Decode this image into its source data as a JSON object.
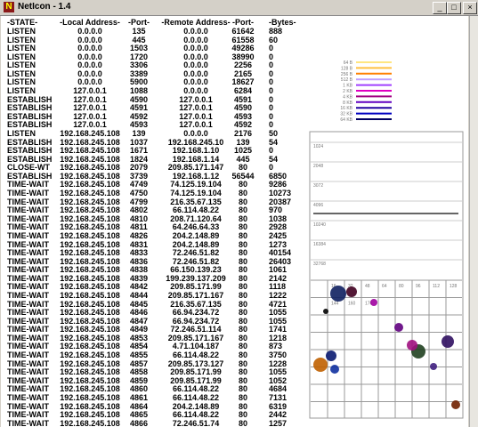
{
  "window": {
    "title": "NetIcon - 1.4"
  },
  "table": {
    "columns": [
      "-STATE-",
      "-Local Address-",
      "-Port-",
      "-Remote Address-",
      "-Port-",
      "-Bytes-"
    ],
    "rows": [
      [
        "LISTEN",
        "0.0.0.0",
        "135",
        "0.0.0.0",
        "61642",
        "888"
      ],
      [
        "LISTEN",
        "0.0.0.0",
        "445",
        "0.0.0.0",
        "61558",
        "60"
      ],
      [
        "LISTEN",
        "0.0.0.0",
        "1503",
        "0.0.0.0",
        "49286",
        "0"
      ],
      [
        "LISTEN",
        "0.0.0.0",
        "1720",
        "0.0.0.0",
        "38990",
        "0"
      ],
      [
        "LISTEN",
        "0.0.0.0",
        "3306",
        "0.0.0.0",
        "2256",
        "0"
      ],
      [
        "LISTEN",
        "0.0.0.0",
        "3389",
        "0.0.0.0",
        "2165",
        "0"
      ],
      [
        "LISTEN",
        "0.0.0.0",
        "5900",
        "0.0.0.0",
        "18627",
        "0"
      ],
      [
        "LISTEN",
        "127.0.0.1",
        "1088",
        "0.0.0.0",
        "6284",
        "0"
      ],
      [
        "ESTABLISH",
        "127.0.0.1",
        "4590",
        "127.0.0.1",
        "4591",
        "0"
      ],
      [
        "ESTABLISH",
        "127.0.0.1",
        "4591",
        "127.0.0.1",
        "4590",
        "0"
      ],
      [
        "ESTABLISH",
        "127.0.0.1",
        "4592",
        "127.0.0.1",
        "4593",
        "0"
      ],
      [
        "ESTABLISH",
        "127.0.0.1",
        "4593",
        "127.0.0.1",
        "4592",
        "0"
      ],
      [
        "LISTEN",
        "192.168.245.108",
        "139",
        "0.0.0.0",
        "2176",
        "50"
      ],
      [
        "ESTABLISH",
        "192.168.245.108",
        "1037",
        "192.168.245.10",
        "139",
        "54"
      ],
      [
        "ESTABLISH",
        "192.168.245.108",
        "1671",
        "192.168.1.10",
        "1025",
        "0"
      ],
      [
        "ESTABLISH",
        "192.168.245.108",
        "1824",
        "192.168.1.14",
        "445",
        "54"
      ],
      [
        "CLOSE-WT",
        "192.168.245.108",
        "2079",
        "209.85.171.147",
        "80",
        "0"
      ],
      [
        "ESTABLISH",
        "192.168.245.108",
        "3739",
        "192.168.1.12",
        "56544",
        "6850"
      ],
      [
        "TIME-WAIT",
        "192.168.245.108",
        "4749",
        "74.125.19.104",
        "80",
        "9286"
      ],
      [
        "TIME-WAIT",
        "192.168.245.108",
        "4750",
        "74.125.19.104",
        "80",
        "10273"
      ],
      [
        "TIME-WAIT",
        "192.168.245.108",
        "4799",
        "216.35.67.135",
        "80",
        "20387"
      ],
      [
        "TIME-WAIT",
        "192.168.245.108",
        "4802",
        "66.114.48.22",
        "80",
        "970"
      ],
      [
        "TIME-WAIT",
        "192.168.245.108",
        "4810",
        "208.71.120.64",
        "80",
        "1038"
      ],
      [
        "TIME-WAIT",
        "192.168.245.108",
        "4811",
        "64.246.64.33",
        "80",
        "2928"
      ],
      [
        "TIME-WAIT",
        "192.168.245.108",
        "4826",
        "204.2.148.89",
        "80",
        "2425"
      ],
      [
        "TIME-WAIT",
        "192.168.245.108",
        "4831",
        "204.2.148.89",
        "80",
        "1273"
      ],
      [
        "TIME-WAIT",
        "192.168.245.108",
        "4833",
        "72.246.51.82",
        "80",
        "40154"
      ],
      [
        "TIME-WAIT",
        "192.168.245.108",
        "4836",
        "72.246.51.82",
        "80",
        "26403"
      ],
      [
        "TIME-WAIT",
        "192.168.245.108",
        "4838",
        "66.150.139.23",
        "80",
        "1061"
      ],
      [
        "TIME-WAIT",
        "192.168.245.108",
        "4839",
        "199.239.137.209",
        "80",
        "2142"
      ],
      [
        "TIME-WAIT",
        "192.168.245.108",
        "4842",
        "209.85.171.99",
        "80",
        "1118"
      ],
      [
        "TIME-WAIT",
        "192.168.245.108",
        "4844",
        "209.85.171.167",
        "80",
        "1222"
      ],
      [
        "TIME-WAIT",
        "192.168.245.108",
        "4845",
        "216.35.67.135",
        "80",
        "4721"
      ],
      [
        "TIME-WAIT",
        "192.168.245.108",
        "4846",
        "66.94.234.72",
        "80",
        "1055"
      ],
      [
        "TIME-WAIT",
        "192.168.245.108",
        "4847",
        "66.94.234.72",
        "80",
        "1055"
      ],
      [
        "TIME-WAIT",
        "192.168.245.108",
        "4849",
        "72.246.51.114",
        "80",
        "1741"
      ],
      [
        "TIME-WAIT",
        "192.168.245.108",
        "4853",
        "209.85.171.167",
        "80",
        "1218"
      ],
      [
        "TIME-WAIT",
        "192.168.245.108",
        "4854",
        "4.71.104.187",
        "80",
        "873"
      ],
      [
        "TIME-WAIT",
        "192.168.245.108",
        "4855",
        "66.114.48.22",
        "80",
        "3750"
      ],
      [
        "TIME-WAIT",
        "192.168.245.108",
        "4857",
        "209.85.173.127",
        "80",
        "1228"
      ],
      [
        "TIME-WAIT",
        "192.168.245.108",
        "4858",
        "209.85.171.99",
        "80",
        "1055"
      ],
      [
        "TIME-WAIT",
        "192.168.245.108",
        "4859",
        "209.85.171.99",
        "80",
        "1052"
      ],
      [
        "TIME-WAIT",
        "192.168.245.108",
        "4860",
        "66.114.48.22",
        "80",
        "4684"
      ],
      [
        "TIME-WAIT",
        "192.168.245.108",
        "4861",
        "66.114.48.22",
        "80",
        "7131"
      ],
      [
        "TIME-WAIT",
        "192.168.245.108",
        "4864",
        "204.2.148.89",
        "80",
        "6319"
      ],
      [
        "TIME-WAIT",
        "192.168.245.108",
        "4865",
        "66.114.48.22",
        "80",
        "2442"
      ],
      [
        "TIME-WAIT",
        "192.168.245.108",
        "4866",
        "72.246.51.74",
        "80",
        "1257"
      ]
    ]
  },
  "legend": {
    "labels": [
      "64 B",
      "128 B",
      "256 B",
      "512 B",
      "1 KB",
      "2 KB",
      "4 KB",
      "8 KB",
      "16 KB",
      "32 KB",
      "64 KB"
    ]
  },
  "graph": {
    "row_labels": [
      "1024",
      "2048",
      "3072",
      "4096",
      "10240",
      "16384",
      "32768"
    ],
    "cell_labels": [
      "16",
      "32",
      "48",
      "64",
      "80",
      "96",
      "112",
      "128",
      "144",
      "160",
      "176"
    ]
  }
}
